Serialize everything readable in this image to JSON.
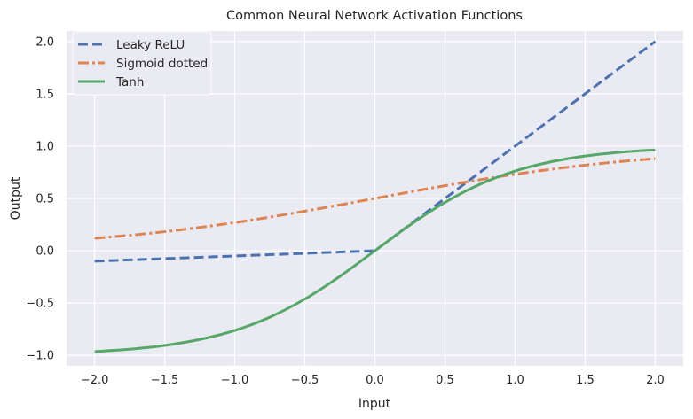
{
  "chart_data": {
    "type": "line",
    "title": "Common Neural Network Activation Functions",
    "xlabel": "Input",
    "ylabel": "Output",
    "xlim": [
      -2.2,
      2.2
    ],
    "ylim": [
      -1.1,
      2.1
    ],
    "xticks": [
      -2.0,
      -1.5,
      -1.0,
      -0.5,
      0.0,
      0.5,
      1.0,
      1.5,
      2.0
    ],
    "xtick_labels": [
      "−2.0",
      "−1.5",
      "−1.0",
      "−0.5",
      "0.0",
      "0.5",
      "1.0",
      "1.5",
      "2.0"
    ],
    "yticks": [
      -1.0,
      -0.5,
      0.0,
      0.5,
      1.0,
      1.5,
      2.0
    ],
    "ytick_labels": [
      "−1.0",
      "−0.5",
      "0.0",
      "0.5",
      "1.0",
      "1.5",
      "2.0"
    ],
    "grid": true,
    "legend_position": "top-left",
    "background_color": "#eaeaf2",
    "grid_color": "#ffffff",
    "x": [
      -2.0,
      -1.75,
      -1.5,
      -1.25,
      -1.0,
      -0.75,
      -0.5,
      -0.25,
      0.0,
      0.25,
      0.5,
      0.75,
      1.0,
      1.25,
      1.5,
      1.75,
      2.0
    ],
    "series": [
      {
        "name": "Leaky ReLU",
        "color": "#4c72b0",
        "style": "dashed",
        "values": [
          -0.1,
          -0.0875,
          -0.075,
          -0.0625,
          -0.05,
          -0.0375,
          -0.025,
          -0.0125,
          0.0,
          0.25,
          0.5,
          0.75,
          1.0,
          1.25,
          1.5,
          1.75,
          2.0
        ]
      },
      {
        "name": "Sigmoid dotted",
        "color": "#dd8452",
        "style": "dashdot",
        "values": [
          0.119,
          0.148,
          0.182,
          0.223,
          0.269,
          0.321,
          0.378,
          0.438,
          0.5,
          0.562,
          0.622,
          0.679,
          0.731,
          0.777,
          0.818,
          0.852,
          0.881
        ]
      },
      {
        "name": "Tanh",
        "color": "#55a868",
        "style": "solid",
        "values": [
          -0.964,
          -0.941,
          -0.905,
          -0.848,
          -0.762,
          -0.635,
          -0.462,
          -0.245,
          0.0,
          0.245,
          0.462,
          0.635,
          0.762,
          0.848,
          0.905,
          0.941,
          0.964
        ]
      }
    ]
  }
}
